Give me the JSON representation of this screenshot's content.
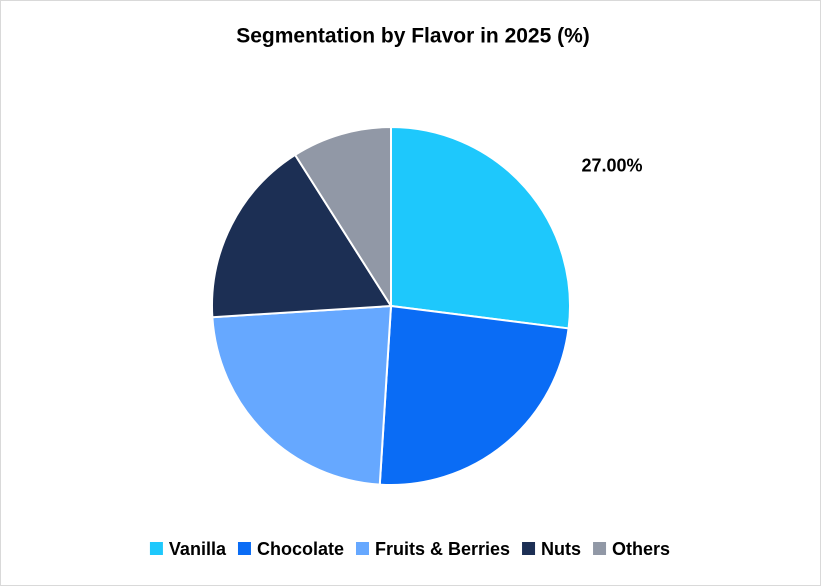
{
  "chart_data": {
    "type": "pie",
    "title": "Segmentation by Flavor in 2025 (%)",
    "categories": [
      "Vanilla",
      "Chocolate",
      "Fruits & Berries",
      "Nuts",
      "Others"
    ],
    "values": [
      27,
      24,
      23,
      17,
      9
    ],
    "value_labels": [
      "27.00%",
      null,
      null,
      null,
      null
    ],
    "colors": [
      "#1ec8fc",
      "#0a6cf5",
      "#66a8ff",
      "#1c2f54",
      "#9198a6"
    ],
    "legend": "bottom"
  }
}
